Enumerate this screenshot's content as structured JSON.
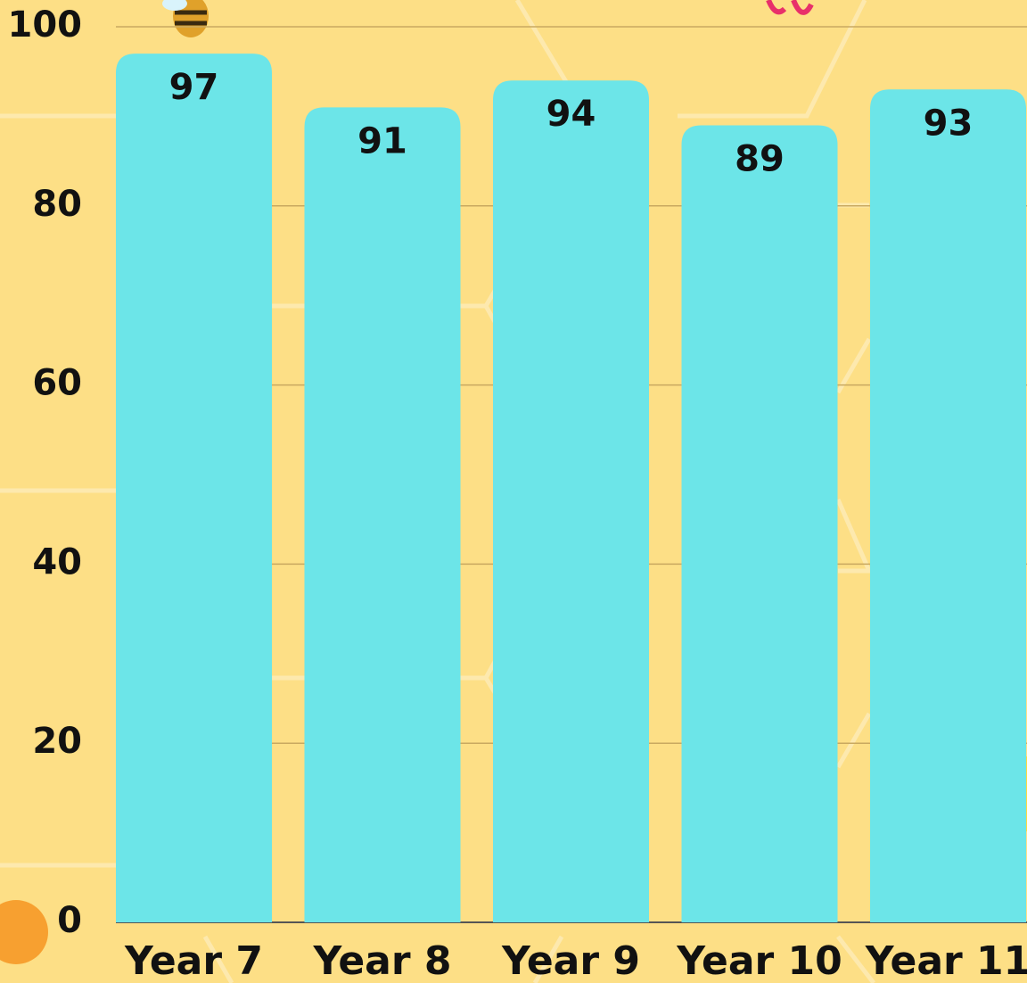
{
  "chart_data": {
    "type": "bar",
    "categories": [
      "Year 7",
      "Year 8",
      "Year 9",
      "Year 10",
      "Year 11"
    ],
    "values": [
      97,
      91,
      94,
      89,
      93
    ],
    "color": "#6ce5e8",
    "ylim": [
      0,
      100
    ],
    "yticks": [
      0,
      20,
      40,
      60,
      80,
      100
    ],
    "grid": true
  }
}
